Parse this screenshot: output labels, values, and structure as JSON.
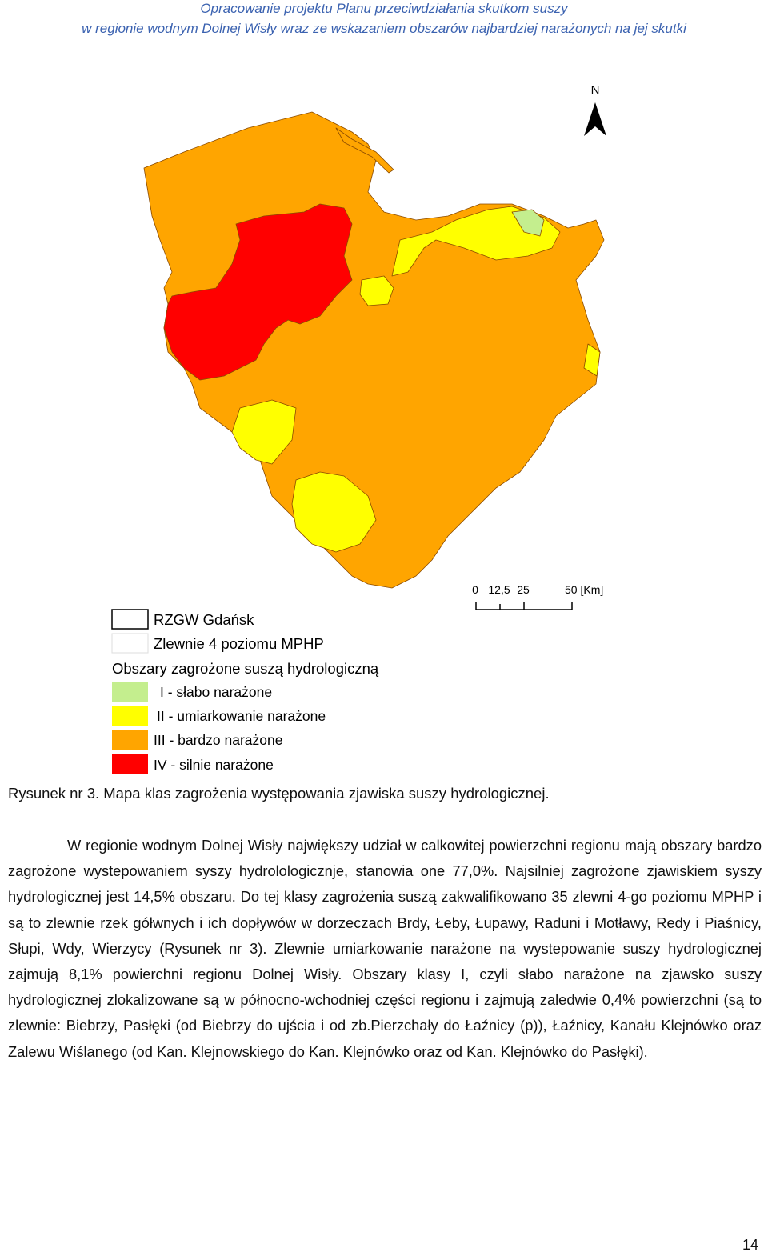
{
  "header": {
    "line1": "Opracowanie projektu Planu przeciwdziałania skutkom suszy",
    "line2": "w regionie wodnym Dolnej Wisły wraz ze wskazaniem obszarów najbardziej narażonych na jej skutki"
  },
  "map": {
    "north": "N",
    "scale": [
      "0",
      "12,5",
      "25",
      "50 [Km]"
    ],
    "legend": {
      "boundaries": [
        "RZGW Gdańsk",
        "Zlewnie 4 poziomu MPHP"
      ],
      "heading": "Obszary zagrożone suszą hydrologiczną",
      "classes": [
        {
          "label": "I - słabo narażone",
          "color": "#c4ee8e"
        },
        {
          "label": "II - umiarkowanie narażone",
          "color": "#ffff00"
        },
        {
          "label": "III - bardzo narażone",
          "color": "#ffa500"
        },
        {
          "label": "IV - silnie narażone",
          "color": "#ff0000"
        }
      ]
    }
  },
  "caption": "Rysunek nr 3. Mapa klas zagrożenia występowania zjawiska suszy hydrologicznej.",
  "paragraph": "W regionie wodnym Dolnej Wisły największy udział w calkowitej powierzchni regionu mają obszary bardzo zagrożone wystepowaniem syszy hydrolologicznje, stanowia one 77,0%. Najsilniej zagrożone zjawiskiem syszy hydrologicznej jest 14,5% obszaru.  Do tej klasy zagrożenia suszą zakwalifikowano 35 zlewni 4-go poziomu MPHP i są to zlewnie rzek gółwnych i ich dopływów w dorzeczach Brdy, Łeby, Łupawy, Raduni i Motławy, Redy i Piaśnicy, Słupi, Wdy, Wierzycy (Rysunek nr 3). Zlewnie umiarkowanie narażone na wystepowanie suszy hydrologicznej zajmują 8,1% powierchni regionu Dolnej Wisły. Obszary klasy I, czyli słabo narażone na zjawsko suszy hydrologicznej zlokalizowane są w północno-wchodniej części regionu i zajmują zaledwie 0,4% powierzchni (są to zlewnie: Biebrzy, Pasłęki (od Biebrzy do ujścia i od zb.Pierzchały do Łaźnicy (p)), Łaźnicy, Kanału Klejnówko oraz Zalewu Wiślanego (od Kan. Klejnowskiego do Kan. Klejnówko oraz od Kan. Klejnówko do Pasłęki).",
  "page_number": "14"
}
